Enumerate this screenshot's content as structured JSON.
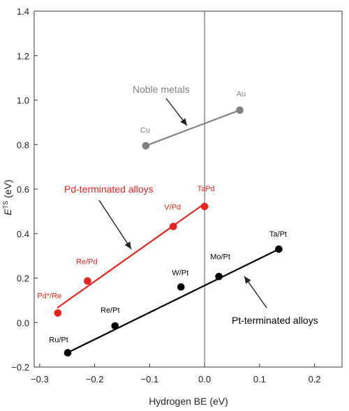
{
  "chart_data": {
    "type": "scatter",
    "xlabel": "Hydrogen BE (eV)",
    "ylabel_main": "E",
    "ylabel_sup": "TS",
    "ylabel_unit": " (eV)",
    "xlim": [
      -0.31,
      0.25
    ],
    "ylim": [
      -0.2,
      1.4
    ],
    "xticks": [
      -0.3,
      -0.2,
      -0.1,
      0.0,
      0.1,
      0.2
    ],
    "xtick_labels": [
      "−0.3",
      "−0.2",
      "−0.1",
      "0.0",
      "0.1",
      "0.2"
    ],
    "yticks": [
      -0.2,
      0.0,
      0.2,
      0.4,
      0.6,
      0.8,
      1.0,
      1.2,
      1.4
    ],
    "ytick_labels": [
      "−0.2",
      "0.0",
      "0.2",
      "0.4",
      "0.6",
      "0.8",
      "1.0",
      "1.2",
      "1.4"
    ],
    "vertical_line_x": 0.0,
    "grid": false,
    "series": [
      {
        "name": "Noble metals",
        "color": "#808080",
        "points": [
          {
            "label": "Cu",
            "x": -0.107,
            "y": 0.795
          },
          {
            "label": "Au",
            "x": 0.064,
            "y": 0.955
          }
        ],
        "fit": [
          [
            -0.107,
            0.795
          ],
          [
            0.064,
            0.955
          ]
        ]
      },
      {
        "name": "Pd-terminated alloys",
        "color": "#e8231f",
        "points": [
          {
            "label": "Pd*/Re",
            "x": -0.267,
            "y": 0.043
          },
          {
            "label": "Re/Pd",
            "x": -0.213,
            "y": 0.187
          },
          {
            "label": "V/Pd",
            "x": -0.057,
            "y": 0.432
          },
          {
            "label": "TaPd",
            "x": 0.0,
            "y": 0.522
          }
        ],
        "fit": [
          [
            -0.268,
            0.066
          ],
          [
            0.0,
            0.535
          ]
        ]
      },
      {
        "name": "Pt-terminated alloys",
        "color": "#000000",
        "points": [
          {
            "label": "Ru/Pt",
            "x": -0.249,
            "y": -0.136
          },
          {
            "label": "Re/Pt",
            "x": -0.163,
            "y": -0.015
          },
          {
            "label": "W/Pt",
            "x": -0.043,
            "y": 0.16
          },
          {
            "label": "Mo/Pt",
            "x": 0.026,
            "y": 0.207
          },
          {
            "label": "Ta/Pt",
            "x": 0.135,
            "y": 0.33
          }
        ],
        "fit": [
          [
            -0.253,
            -0.14
          ],
          [
            0.135,
            0.33
          ]
        ]
      }
    ]
  }
}
